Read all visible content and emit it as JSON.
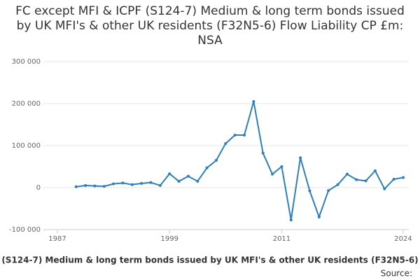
{
  "chart_data": {
    "type": "line",
    "title": "FC except MFI & ICPF (S124-7) Medium & long term bonds issued by UK MFI's & other UK residents (F32N5-6) Flow Liability CP £m: NSA",
    "x_label": "(S124-7) Medium & long term bonds issued by UK MFI's & other UK residents (F32N5-6)",
    "source": "Source:",
    "x": [
      1989,
      1990,
      1991,
      1992,
      1993,
      1994,
      1995,
      1996,
      1997,
      1998,
      1999,
      2000,
      2001,
      2002,
      2003,
      2004,
      2005,
      2006,
      2007,
      2008,
      2009,
      2010,
      2011,
      2012,
      2013,
      2014,
      2015,
      2016,
      2017,
      2018,
      2019,
      2020,
      2021,
      2022,
      2023,
      2024
    ],
    "series": [
      {
        "name": "Flow Liability CP £m",
        "color": "#2f7fbd",
        "values": [
          2000,
          5000,
          4000,
          3000,
          9000,
          11000,
          7000,
          10000,
          12000,
          5000,
          33000,
          15000,
          27000,
          15000,
          47000,
          65000,
          105000,
          125000,
          125000,
          205000,
          82000,
          32000,
          50000,
          -77000,
          71000,
          -8000,
          -70000,
          -7000,
          7000,
          32000,
          19000,
          16000,
          40000,
          -3000,
          20000,
          24000
        ]
      }
    ],
    "xlim": [
      1987,
      2024
    ],
    "xticks": [
      1987,
      1999,
      2011,
      2024
    ],
    "ylim": [
      -100000,
      300000
    ],
    "yticks": [
      {
        "value": -100000,
        "label": "-100 000"
      },
      {
        "value": 0,
        "label": "0"
      },
      {
        "value": 100000,
        "label": "100 000"
      },
      {
        "value": 200000,
        "label": "200 000"
      },
      {
        "value": 300000,
        "label": "300 000"
      }
    ],
    "grid": true
  }
}
